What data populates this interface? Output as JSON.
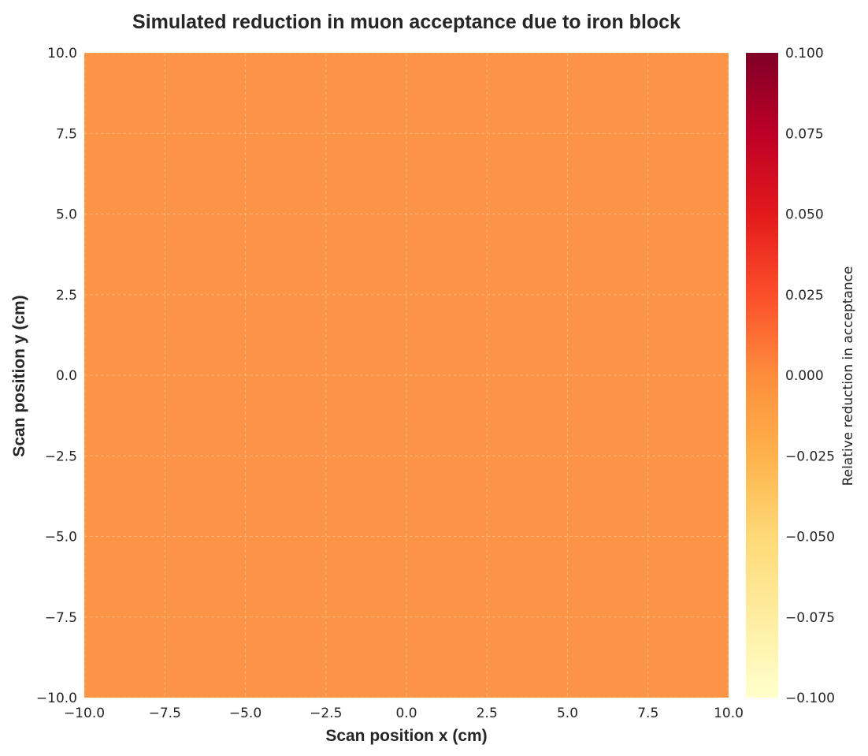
{
  "chart_data": {
    "type": "heatmap",
    "title": "Simulated reduction in muon acceptance due to iron block",
    "xlabel": "Scan position x (cm)",
    "ylabel": "Scan position y (cm)",
    "xlim": [
      -10,
      10
    ],
    "ylim": [
      -10,
      10
    ],
    "x_ticks": [
      "−10.0",
      "−7.5",
      "−5.0",
      "−2.5",
      "0.0",
      "2.5",
      "5.0",
      "7.5",
      "10.0"
    ],
    "y_ticks": [
      "−10.0",
      "−7.5",
      "−5.0",
      "−2.5",
      "0.0",
      "2.5",
      "5.0",
      "7.5",
      "10.0"
    ],
    "grid": true,
    "values_description_value": 0.0,
    "values": [
      [
        0.0
      ]
    ],
    "colorbar": {
      "label": "Relative reduction in acceptance",
      "range": [
        -0.1,
        0.1
      ],
      "ticks": [
        "0.100",
        "0.075",
        "0.050",
        "0.025",
        "0.000",
        "−0.025",
        "−0.050",
        "−0.075",
        "−0.100"
      ],
      "colormap": "YlOrRd",
      "stops": [
        "#ffffcc",
        "#ffeda0",
        "#fed976",
        "#feb24c",
        "#fd8d3c",
        "#fc4e2a",
        "#e31a1c",
        "#bd0026",
        "#800026"
      ]
    },
    "fill_color": "#fb9447"
  }
}
